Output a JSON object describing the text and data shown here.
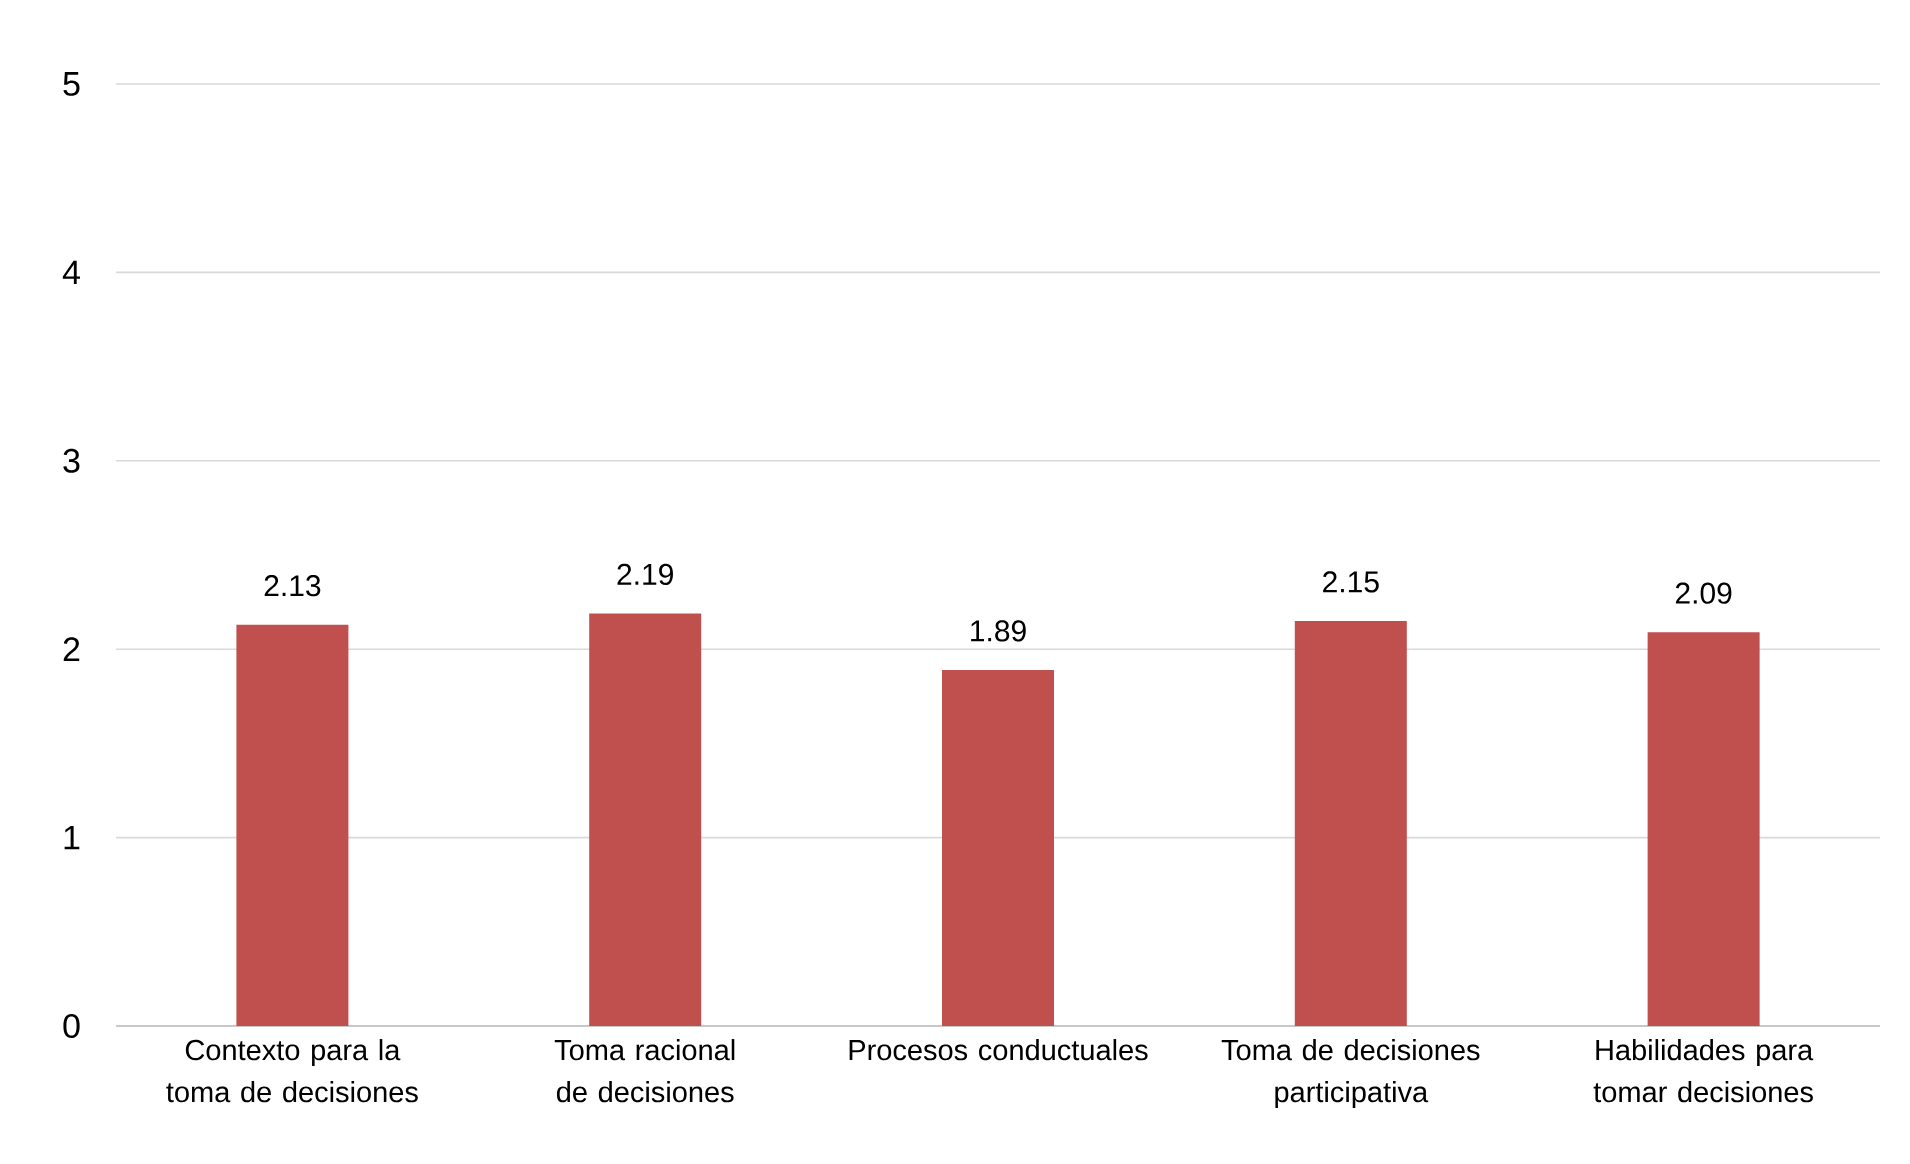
{
  "chart_data": {
    "type": "bar",
    "categories": [
      "Contexto para la toma de decisiones",
      "Toma racional de decisiones",
      "Procesos conductuales",
      "Toma de decisiones participativa",
      "Habilidades para tomar decisiones"
    ],
    "values": [
      2.13,
      2.19,
      1.89,
      2.15,
      2.09
    ],
    "color": "#c0504d",
    "ylim": [
      0,
      5
    ],
    "yticks": [
      0,
      1,
      2,
      3,
      4,
      5
    ],
    "grid": "y",
    "data_labels": true
  }
}
